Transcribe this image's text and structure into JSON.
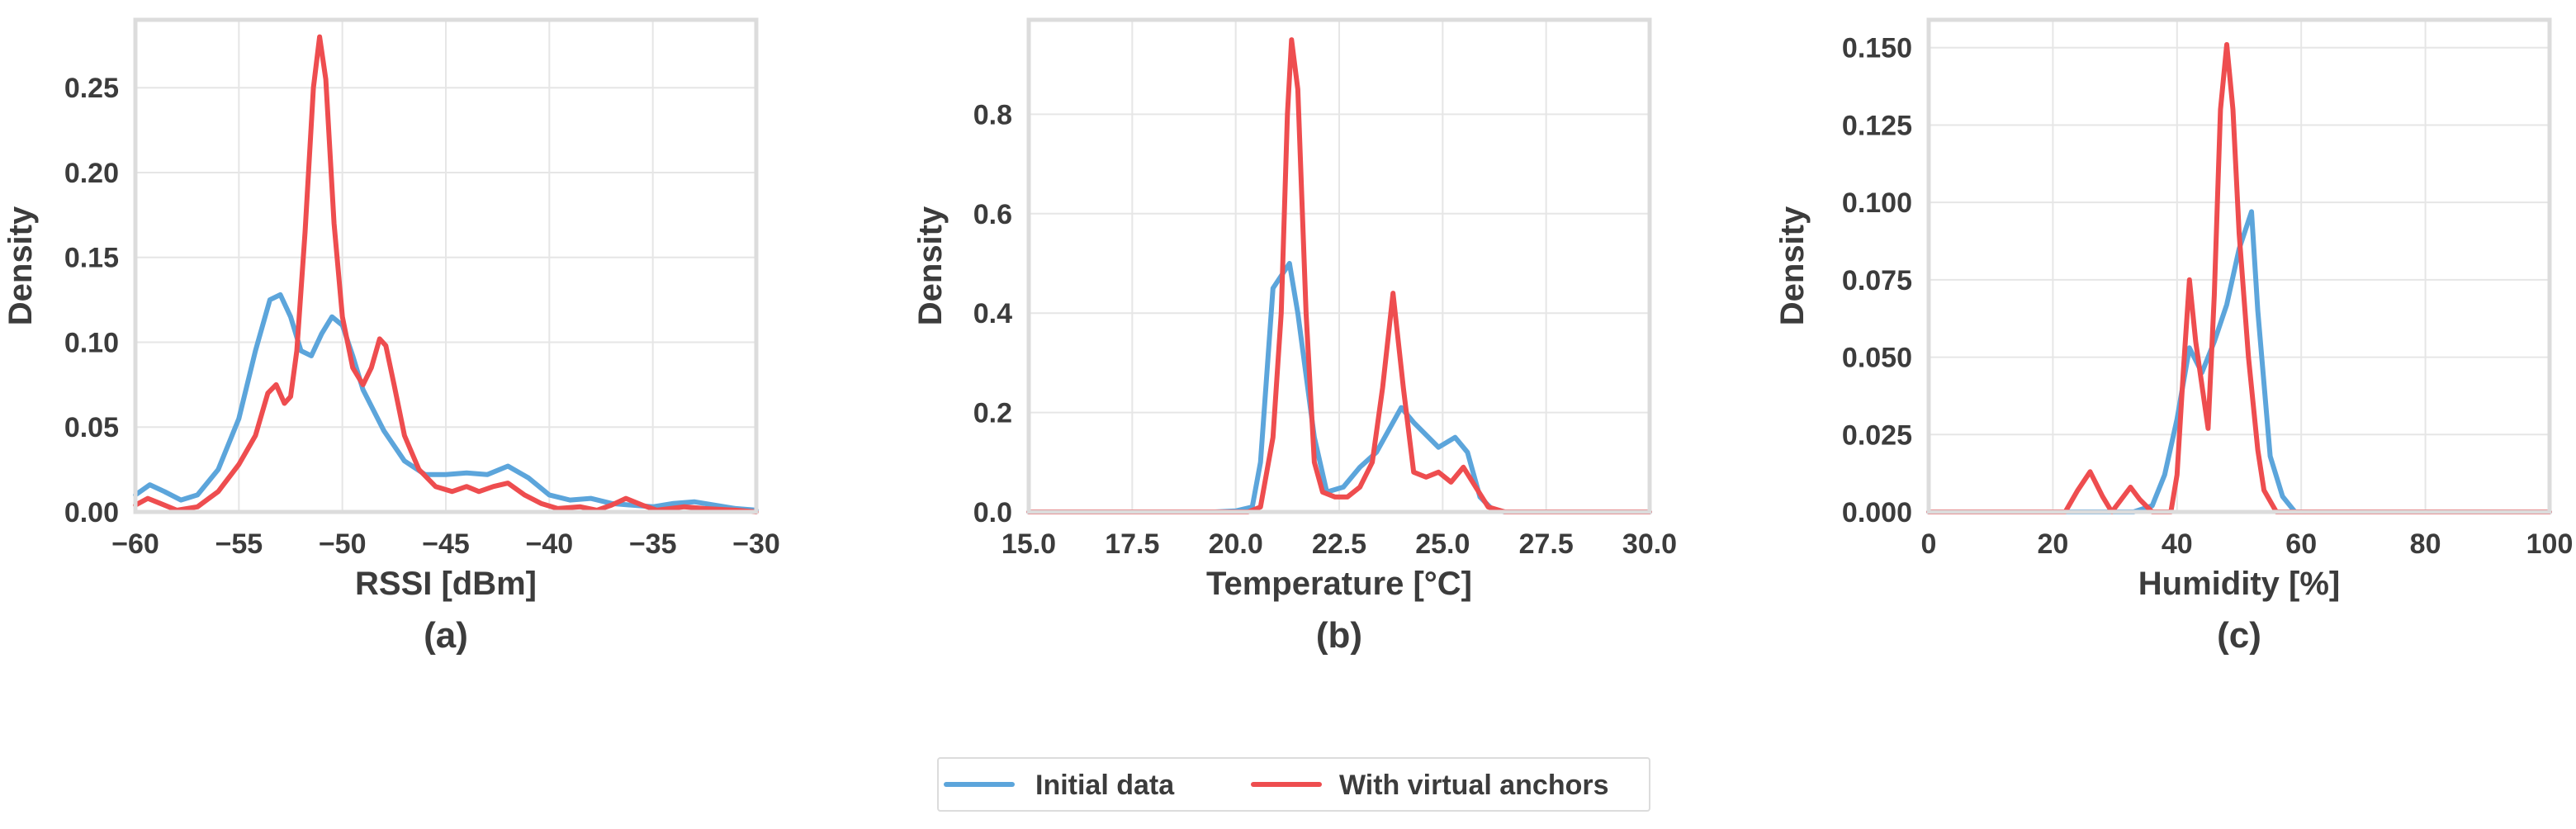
{
  "colors": {
    "initial": "#5ca5db",
    "virtual": "#ee4d4f",
    "grid": "#e6e6e6",
    "frame": "#dcdcdc",
    "text": "#3c3c3c"
  },
  "legend": {
    "items": [
      {
        "label": "Initial data"
      },
      {
        "label": "With virtual anchors"
      }
    ],
    "placement": "bottom-center"
  },
  "chart_data": [
    {
      "type": "line",
      "caption": "(a)",
      "xlabel": "RSSI [dBm]",
      "ylabel": "Density",
      "xlim": [
        -60,
        -30
      ],
      "ylim": [
        0,
        0.29
      ],
      "xticks": [
        -60,
        -55,
        -50,
        -45,
        -40,
        -35,
        -30
      ],
      "xtick_labels": [
        "−60",
        "−55",
        "−50",
        "−45",
        "−40",
        "−35",
        "−30"
      ],
      "yticks": [
        0,
        0.05,
        0.1,
        0.15,
        0.2,
        0.25
      ],
      "ytick_labels": [
        "0.00",
        "0.05",
        "0.10",
        "0.15",
        "0.20",
        "0.25"
      ],
      "grid": true,
      "series": [
        {
          "name": "Initial data",
          "color": "#5ca5db",
          "points": [
            [
              -60,
              0.01
            ],
            [
              -59.3,
              0.016
            ],
            [
              -58.6,
              0.012
            ],
            [
              -57.8,
              0.007
            ],
            [
              -57,
              0.01
            ],
            [
              -56,
              0.025
            ],
            [
              -55,
              0.055
            ],
            [
              -54.2,
              0.095
            ],
            [
              -53.5,
              0.125
            ],
            [
              -53,
              0.128
            ],
            [
              -52.5,
              0.115
            ],
            [
              -52,
              0.095
            ],
            [
              -51.5,
              0.092
            ],
            [
              -51,
              0.105
            ],
            [
              -50.5,
              0.115
            ],
            [
              -50,
              0.11
            ],
            [
              -49.5,
              0.092
            ],
            [
              -49,
              0.072
            ],
            [
              -48,
              0.048
            ],
            [
              -47,
              0.03
            ],
            [
              -46,
              0.022
            ],
            [
              -45,
              0.022
            ],
            [
              -44,
              0.023
            ],
            [
              -43,
              0.022
            ],
            [
              -42,
              0.027
            ],
            [
              -41,
              0.02
            ],
            [
              -40,
              0.01
            ],
            [
              -39,
              0.007
            ],
            [
              -38,
              0.008
            ],
            [
              -37,
              0.005
            ],
            [
              -36,
              0.004
            ],
            [
              -35,
              0.003
            ],
            [
              -34,
              0.005
            ],
            [
              -33,
              0.006
            ],
            [
              -32,
              0.004
            ],
            [
              -31,
              0.002
            ],
            [
              -30,
              0.001
            ]
          ]
        },
        {
          "name": "With virtual anchors",
          "color": "#ee4d4f",
          "points": [
            [
              -60,
              0.004
            ],
            [
              -59.4,
              0.008
            ],
            [
              -58.8,
              0.005
            ],
            [
              -58,
              0.001
            ],
            [
              -57,
              0.003
            ],
            [
              -56,
              0.012
            ],
            [
              -55,
              0.028
            ],
            [
              -54.2,
              0.045
            ],
            [
              -53.6,
              0.07
            ],
            [
              -53.2,
              0.075
            ],
            [
              -52.8,
              0.064
            ],
            [
              -52.5,
              0.068
            ],
            [
              -52.2,
              0.095
            ],
            [
              -51.8,
              0.165
            ],
            [
              -51.4,
              0.25
            ],
            [
              -51.1,
              0.28
            ],
            [
              -50.8,
              0.255
            ],
            [
              -50.4,
              0.17
            ],
            [
              -50,
              0.115
            ],
            [
              -49.5,
              0.085
            ],
            [
              -49,
              0.075
            ],
            [
              -48.6,
              0.085
            ],
            [
              -48.2,
              0.102
            ],
            [
              -47.9,
              0.098
            ],
            [
              -47.5,
              0.075
            ],
            [
              -47,
              0.045
            ],
            [
              -46.3,
              0.025
            ],
            [
              -45.5,
              0.015
            ],
            [
              -44.7,
              0.012
            ],
            [
              -44,
              0.015
            ],
            [
              -43.4,
              0.012
            ],
            [
              -42.7,
              0.015
            ],
            [
              -42,
              0.017
            ],
            [
              -41.2,
              0.01
            ],
            [
              -40.4,
              0.005
            ],
            [
              -39.6,
              0.002
            ],
            [
              -38.5,
              0.003
            ],
            [
              -37.7,
              0.001
            ],
            [
              -37,
              0.004
            ],
            [
              -36.3,
              0.008
            ],
            [
              -35.5,
              0.004
            ],
            [
              -34.8,
              0.001
            ],
            [
              -33.5,
              0.003
            ],
            [
              -32.5,
              0.002
            ],
            [
              -31,
              0.001
            ],
            [
              -30,
              0.0
            ]
          ]
        }
      ]
    },
    {
      "type": "line",
      "caption": "(b)",
      "xlabel": "Temperature [°C]",
      "ylabel": "Density",
      "xlim": [
        15,
        30
      ],
      "ylim": [
        0,
        0.99
      ],
      "xticks": [
        15,
        17.5,
        20,
        22.5,
        25,
        27.5,
        30
      ],
      "xtick_labels": [
        "15.0",
        "17.5",
        "20.0",
        "22.5",
        "25.0",
        "27.5",
        "30.0"
      ],
      "yticks": [
        0,
        0.2,
        0.4,
        0.6,
        0.8
      ],
      "ytick_labels": [
        "0.0",
        "0.2",
        "0.4",
        "0.6",
        "0.8"
      ],
      "grid": true,
      "series": [
        {
          "name": "Initial data",
          "color": "#5ca5db",
          "points": [
            [
              15,
              0
            ],
            [
              19.5,
              0
            ],
            [
              20,
              0.002
            ],
            [
              20.4,
              0.01
            ],
            [
              20.6,
              0.1
            ],
            [
              20.9,
              0.45
            ],
            [
              21.3,
              0.5
            ],
            [
              21.5,
              0.4
            ],
            [
              21.9,
              0.15
            ],
            [
              22.2,
              0.04
            ],
            [
              22.6,
              0.05
            ],
            [
              23,
              0.09
            ],
            [
              23.4,
              0.12
            ],
            [
              23.8,
              0.18
            ],
            [
              24,
              0.21
            ],
            [
              24.3,
              0.18
            ],
            [
              24.6,
              0.155
            ],
            [
              24.9,
              0.13
            ],
            [
              25.3,
              0.15
            ],
            [
              25.6,
              0.12
            ],
            [
              25.9,
              0.03
            ],
            [
              26.2,
              0.005
            ],
            [
              26.5,
              0
            ],
            [
              30,
              0
            ]
          ]
        },
        {
          "name": "With virtual anchors",
          "color": "#ee4d4f",
          "points": [
            [
              15,
              0
            ],
            [
              20.3,
              0
            ],
            [
              20.6,
              0.01
            ],
            [
              20.9,
              0.15
            ],
            [
              21.1,
              0.4
            ],
            [
              21.25,
              0.8
            ],
            [
              21.35,
              0.95
            ],
            [
              21.5,
              0.85
            ],
            [
              21.7,
              0.4
            ],
            [
              21.9,
              0.1
            ],
            [
              22.1,
              0.04
            ],
            [
              22.4,
              0.03
            ],
            [
              22.7,
              0.03
            ],
            [
              23,
              0.05
            ],
            [
              23.3,
              0.1
            ],
            [
              23.55,
              0.25
            ],
            [
              23.8,
              0.44
            ],
            [
              24.05,
              0.25
            ],
            [
              24.3,
              0.08
            ],
            [
              24.6,
              0.07
            ],
            [
              24.9,
              0.08
            ],
            [
              25.2,
              0.06
            ],
            [
              25.5,
              0.09
            ],
            [
              25.8,
              0.05
            ],
            [
              26.1,
              0.01
            ],
            [
              26.5,
              0
            ],
            [
              30,
              0
            ]
          ]
        }
      ]
    },
    {
      "type": "line",
      "caption": "(c)",
      "xlabel": "Humidity [%]",
      "ylabel": "Density",
      "xlim": [
        0,
        100
      ],
      "ylim": [
        0,
        0.159
      ],
      "xticks": [
        0,
        20,
        40,
        60,
        80,
        100
      ],
      "xtick_labels": [
        "0",
        "20",
        "40",
        "60",
        "80",
        "100"
      ],
      "yticks": [
        0,
        0.025,
        0.05,
        0.075,
        0.1,
        0.125,
        0.15
      ],
      "ytick_labels": [
        "0.000",
        "0.025",
        "0.050",
        "0.075",
        "0.100",
        "0.125",
        "0.150"
      ],
      "grid": true,
      "series": [
        {
          "name": "Initial data",
          "color": "#5ca5db",
          "points": [
            [
              0,
              0
            ],
            [
              33,
              0
            ],
            [
              36,
              0.002
            ],
            [
              38,
              0.012
            ],
            [
              40,
              0.03
            ],
            [
              42,
              0.053
            ],
            [
              44,
              0.045
            ],
            [
              46,
              0.055
            ],
            [
              48,
              0.067
            ],
            [
              50,
              0.085
            ],
            [
              52,
              0.097
            ],
            [
              53,
              0.065
            ],
            [
              55,
              0.018
            ],
            [
              57,
              0.005
            ],
            [
              59,
              0
            ],
            [
              100,
              0
            ]
          ]
        },
        {
          "name": "With virtual anchors",
          "color": "#ee4d4f",
          "points": [
            [
              0,
              0
            ],
            [
              22,
              0
            ],
            [
              24,
              0.007
            ],
            [
              26,
              0.013
            ],
            [
              28,
              0.005
            ],
            [
              29.5,
              0
            ],
            [
              31,
              0.004
            ],
            [
              32.5,
              0.008
            ],
            [
              34,
              0.004
            ],
            [
              36,
              0
            ],
            [
              39,
              0
            ],
            [
              40,
              0.012
            ],
            [
              41,
              0.045
            ],
            [
              42,
              0.075
            ],
            [
              43,
              0.055
            ],
            [
              45,
              0.027
            ],
            [
              46,
              0.07
            ],
            [
              47,
              0.13
            ],
            [
              48,
              0.151
            ],
            [
              49,
              0.13
            ],
            [
              50,
              0.09
            ],
            [
              51.5,
              0.05
            ],
            [
              53,
              0.02
            ],
            [
              54,
              0.007
            ],
            [
              56,
              0
            ],
            [
              100,
              0
            ]
          ]
        }
      ]
    }
  ]
}
